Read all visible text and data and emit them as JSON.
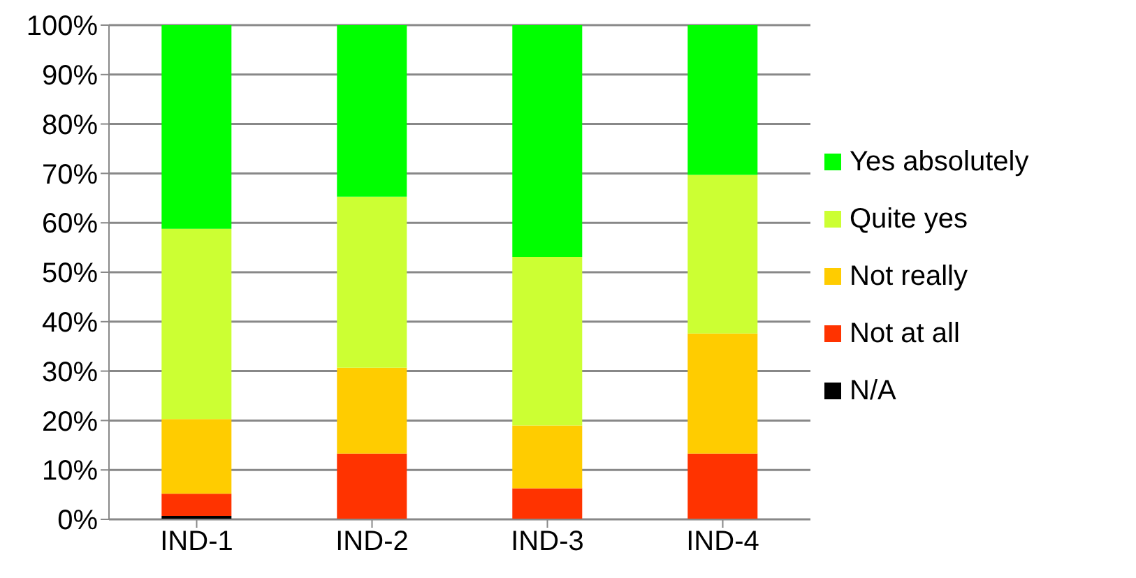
{
  "chart_data": {
    "type": "bar",
    "stacked": true,
    "categories": [
      "IND-1",
      "IND-2",
      "IND-3",
      "IND-4"
    ],
    "series": [
      {
        "name": "N/A",
        "color": "#000000",
        "values": [
          0.7,
          0,
          0,
          0
        ]
      },
      {
        "name": "Not at all",
        "color": "#ff3300",
        "values": [
          4.5,
          13.3,
          6.3,
          13.3
        ]
      },
      {
        "name": "Not really",
        "color": "#ffcc00",
        "values": [
          15.1,
          17.4,
          12.7,
          24.3
        ]
      },
      {
        "name": "Quite yes",
        "color": "#ccff33",
        "values": [
          38.5,
          34.6,
          34.1,
          32.1
        ]
      },
      {
        "name": "Yes absolutely",
        "color": "#00ff00",
        "values": [
          41.2,
          34.7,
          46.9,
          30.3
        ]
      }
    ],
    "ylim": [
      0,
      100
    ],
    "yticks": [
      {
        "value": 0,
        "label": "0%"
      },
      {
        "value": 10,
        "label": "10%"
      },
      {
        "value": 20,
        "label": "20%"
      },
      {
        "value": 30,
        "label": "30%"
      },
      {
        "value": 40,
        "label": "40%"
      },
      {
        "value": 50,
        "label": "50%"
      },
      {
        "value": 60,
        "label": "60%"
      },
      {
        "value": 70,
        "label": "70%"
      },
      {
        "value": 80,
        "label": "80%"
      },
      {
        "value": 90,
        "label": "90%"
      },
      {
        "value": 100,
        "label": "100%"
      }
    ],
    "grid": "y",
    "legend": "right"
  }
}
